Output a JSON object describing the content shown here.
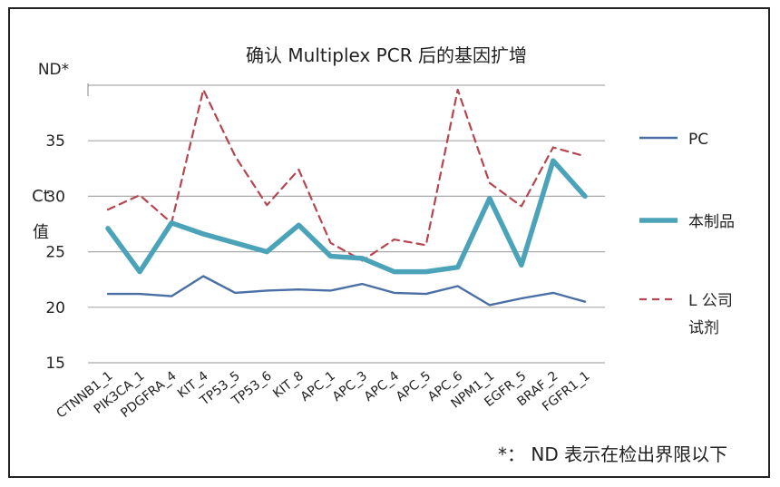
{
  "chart_data": {
    "type": "line",
    "title": "确认 Multiplex  PCR 后的基因扩增",
    "ylabel_chars": [
      "Ct",
      "值"
    ],
    "nd_label": "ND*",
    "footnote": "*： ND 表示在检出界限以下",
    "ylim": [
      15,
      40
    ],
    "yticks": [
      15,
      20,
      25,
      30,
      35
    ],
    "grid": true,
    "legend_position": "right",
    "categories": [
      "CTNNB1_1",
      "PIK3CA_1",
      "PDGFRA_4",
      "KIT_4",
      "TP53_5",
      "TP53_6",
      "KIT_8",
      "APC_1",
      "APC_3",
      "APC_4",
      "APC_5",
      "APC_6",
      "NPM1_1",
      "EGFR_5",
      "BRAF_2",
      "FGFR1_1"
    ],
    "series": [
      {
        "name": "PC",
        "color": "#4a6fa5",
        "style": "solid-thin",
        "values": [
          21.2,
          21.2,
          21.0,
          22.8,
          21.3,
          21.5,
          21.6,
          21.5,
          22.1,
          21.3,
          21.2,
          21.9,
          20.2,
          20.8,
          21.3,
          20.5
        ]
      },
      {
        "name": "本制品",
        "color": "#4aa3b8",
        "style": "solid-thick",
        "values": [
          27.1,
          23.2,
          27.6,
          26.6,
          25.8,
          25.0,
          27.4,
          24.6,
          24.4,
          23.2,
          23.2,
          23.6,
          29.8,
          23.8,
          33.2,
          30.0
        ]
      },
      {
        "name": "L 公司\n试剂",
        "label_lines": [
          "L 公司",
          "试剂"
        ],
        "color": "#b5454f",
        "style": "dashed",
        "values": [
          28.8,
          30.1,
          27.6,
          39.6,
          33.6,
          29.2,
          32.4,
          25.8,
          24.2,
          26.1,
          25.6,
          39.6,
          31.2,
          29.1,
          34.4,
          33.6
        ]
      }
    ]
  }
}
